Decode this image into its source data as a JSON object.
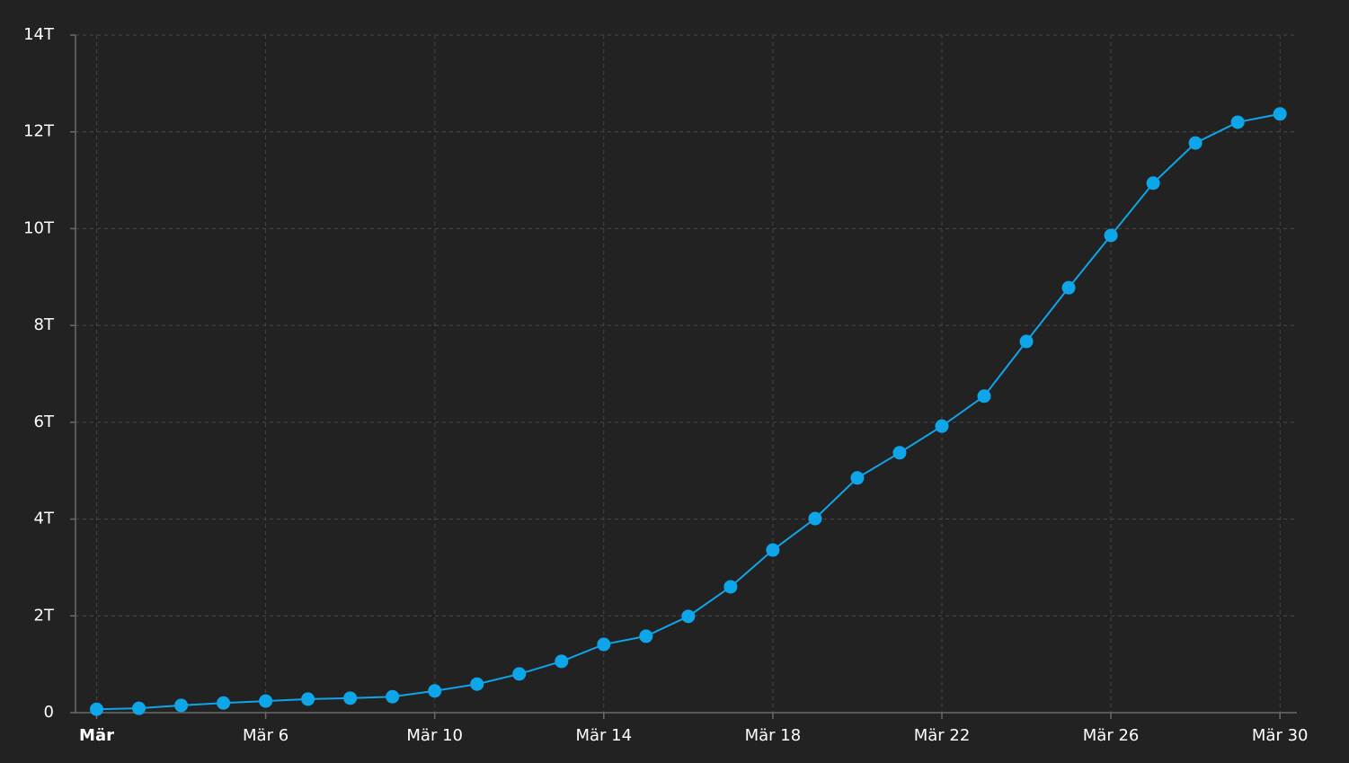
{
  "chart_data": {
    "type": "line",
    "x": [
      2,
      3,
      4,
      5,
      6,
      7,
      8,
      9,
      10,
      11,
      12,
      13,
      14,
      15,
      16,
      17,
      18,
      19,
      20,
      21,
      22,
      23,
      24,
      25,
      26,
      27,
      28,
      29,
      30
    ],
    "series": [
      {
        "color": "#0ea5e9",
        "values": [
          70,
          90,
          150,
          200,
          240,
          280,
          300,
          330,
          450,
          590,
          800,
          1060,
          1410,
          1580,
          1990,
          2600,
          3360,
          4010,
          4850,
          5370,
          5920,
          6540,
          7670,
          8780,
          9860,
          10940,
          11770,
          12200,
          12370
        ]
      }
    ],
    "xlim": [
      1.5,
      30.4
    ],
    "xticks": [
      {
        "value": 2,
        "label": "Mär"
      },
      {
        "value": 6,
        "label": "Mär 6"
      },
      {
        "value": 10,
        "label": "Mär 10"
      },
      {
        "value": 14,
        "label": "Mär 14"
      },
      {
        "value": 18,
        "label": "Mär 18"
      },
      {
        "value": 22,
        "label": "Mär 22"
      },
      {
        "value": 26,
        "label": "Mär 26"
      },
      {
        "value": 30,
        "label": "Mär 30"
      }
    ],
    "ylim": [
      0,
      14000
    ],
    "yticks": [
      0,
      {
        "value": 2000,
        "label": "2T"
      },
      {
        "value": 4000,
        "label": "4T"
      },
      {
        "value": 6000,
        "label": "6T"
      },
      {
        "value": 8000,
        "label": "8T"
      },
      {
        "value": 10000,
        "label": "10T"
      },
      {
        "value": 12000,
        "label": "12T"
      },
      {
        "value": 14000,
        "label": "14T"
      }
    ],
    "grid": true
  }
}
